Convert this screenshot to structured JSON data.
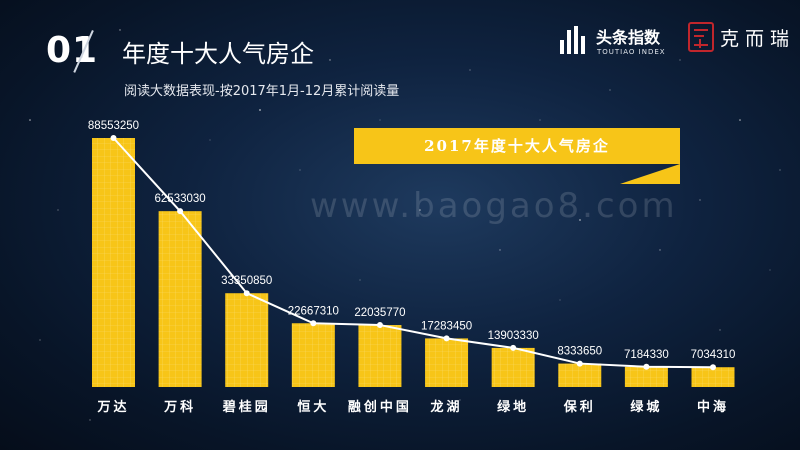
{
  "header": {
    "number": "01",
    "title": "年度十大人气房企",
    "subtitle": "阅读大数据表现-按2017年1月-12月累计阅读量"
  },
  "logos": {
    "toutiao_cn": "头条指数",
    "toutiao_en": "TOUTIAO INDEX",
    "keer": "克而瑞"
  },
  "banner": {
    "text": "2017年度十大人气房企"
  },
  "watermark": "www.baogao8.com",
  "colors": {
    "bar": "#f7c518",
    "line": "#ffffff",
    "background": "#0f2340"
  },
  "chart_data": {
    "type": "bar",
    "categories": [
      "万达",
      "万科",
      "碧桂园",
      "恒大",
      "融创中国",
      "龙湖",
      "绿地",
      "保利",
      "绿城",
      "中海"
    ],
    "values": [
      88553250,
      62533030,
      33350850,
      22667310,
      22035770,
      17283450,
      13903330,
      8333650,
      7184330,
      7034310
    ],
    "value_labels": [
      "88553250",
      "62533030",
      "33350850",
      "22667310",
      "22035770",
      "17283450",
      "13903330",
      "8333650",
      "7184330",
      "7034310"
    ],
    "title": "2017年度十大人气房企",
    "xlabel": "",
    "ylabel": "",
    "ylim": [
      0,
      100000000
    ],
    "overlay_line": true,
    "grid": false
  }
}
